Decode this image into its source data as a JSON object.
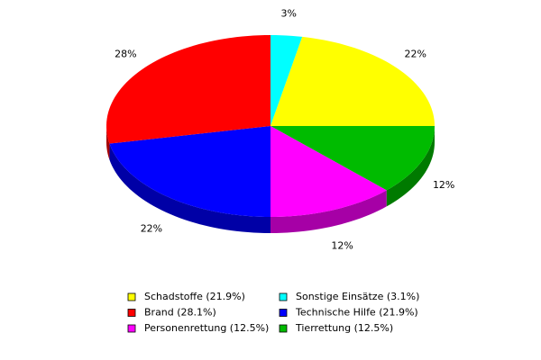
{
  "chart_data": {
    "type": "pie3d",
    "categories": [
      "Sonstige Einsätze (3.1%)",
      "Schadstoffe (21.9%)",
      "Tierrettung (12.5%)",
      "Personenrettung (12.5%)",
      "Technische Hilfe (21.9%)",
      "Brand (28.1%)"
    ],
    "values": [
      3.1,
      21.9,
      12.5,
      12.5,
      21.9,
      28.1
    ],
    "value_labels": [
      "3%",
      "22%",
      "12%",
      "12%",
      "22%",
      "28%"
    ],
    "colors": [
      "#00ffff",
      "#ffff00",
      "#00bb00",
      "#ff00ff",
      "#0000ff",
      "#ff0000"
    ]
  }
}
